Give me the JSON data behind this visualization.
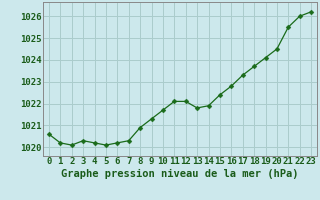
{
  "x": [
    0,
    1,
    2,
    3,
    4,
    5,
    6,
    7,
    8,
    9,
    10,
    11,
    12,
    13,
    14,
    15,
    16,
    17,
    18,
    19,
    20,
    21,
    22,
    23
  ],
  "y": [
    1020.6,
    1020.2,
    1020.1,
    1020.3,
    1020.2,
    1020.1,
    1020.2,
    1020.3,
    1020.9,
    1021.3,
    1021.7,
    1022.1,
    1022.1,
    1021.8,
    1021.9,
    1022.4,
    1022.8,
    1023.3,
    1023.7,
    1024.1,
    1024.5,
    1025.5,
    1026.0,
    1026.2
  ],
  "line_color": "#1a6b1a",
  "marker": "D",
  "marker_size": 2.5,
  "bg_color": "#cce8ec",
  "grid_color": "#aacccc",
  "xlabel": "Graphe pression niveau de la mer (hPa)",
  "xlabel_fontsize": 7.5,
  "ylim": [
    1019.6,
    1026.65
  ],
  "xlim": [
    -0.5,
    23.5
  ],
  "tick_color": "#1a5c1a",
  "tick_fontsize": 6.5,
  "spine_color": "#888888",
  "yticks": [
    1020,
    1021,
    1022,
    1023,
    1024,
    1025,
    1026
  ]
}
